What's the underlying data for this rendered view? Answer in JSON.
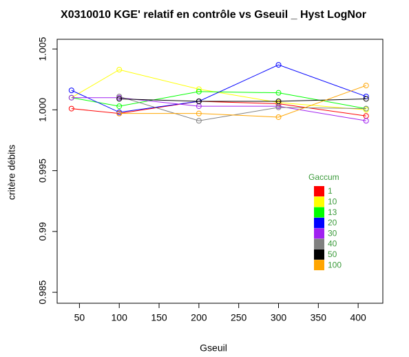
{
  "chart_data": {
    "type": "line",
    "title": "X0310010 KGE' relatif en contrôle vs Gseuil _  Hyst LogNor",
    "x_label": "Gseuil",
    "y_label": "critère débits",
    "x": [
      40,
      100,
      200,
      300,
      410
    ],
    "xlim": [
      22,
      431
    ],
    "xticks": [
      50,
      100,
      150,
      200,
      250,
      300,
      350,
      400
    ],
    "ylim": [
      0.9841,
      1.0058
    ],
    "yticks": [
      0.985,
      0.99,
      0.995,
      {
        "value": 1.0,
        "label": "1.000"
      },
      1.005
    ],
    "legend_title": "Gaccum",
    "series": [
      {
        "name": "1",
        "color": "#ff0000",
        "values": [
          1.0001,
          0.9997,
          1.0007,
          1.0005,
          0.9995
        ]
      },
      {
        "name": "10",
        "color": "#ffff00",
        "values": [
          1.001,
          1.0033,
          1.0017,
          1.0006,
          1.0
        ]
      },
      {
        "name": "13",
        "color": "#00ff00",
        "values": [
          1.001,
          1.0003,
          1.0015,
          1.0014,
          1.0001
        ]
      },
      {
        "name": "20",
        "color": "#0000ff",
        "values": [
          1.0016,
          0.9998,
          1.0007,
          1.0037,
          1.0011
        ]
      },
      {
        "name": "30",
        "color": "#a020f0",
        "values": [
          1.001,
          1.001,
          1.0003,
          1.0003,
          0.9991
        ]
      },
      {
        "name": "40",
        "color": "#808080",
        "values": [
          null,
          1.0011,
          0.9991,
          1.0002,
          1.0001
        ]
      },
      {
        "name": "50",
        "color": "#000000",
        "values": [
          null,
          1.0009,
          1.0007,
          1.0007,
          1.0009
        ]
      },
      {
        "name": "100",
        "color": "#ffa500",
        "values": [
          null,
          0.9997,
          0.9997,
          0.9994,
          1.002
        ]
      }
    ]
  }
}
